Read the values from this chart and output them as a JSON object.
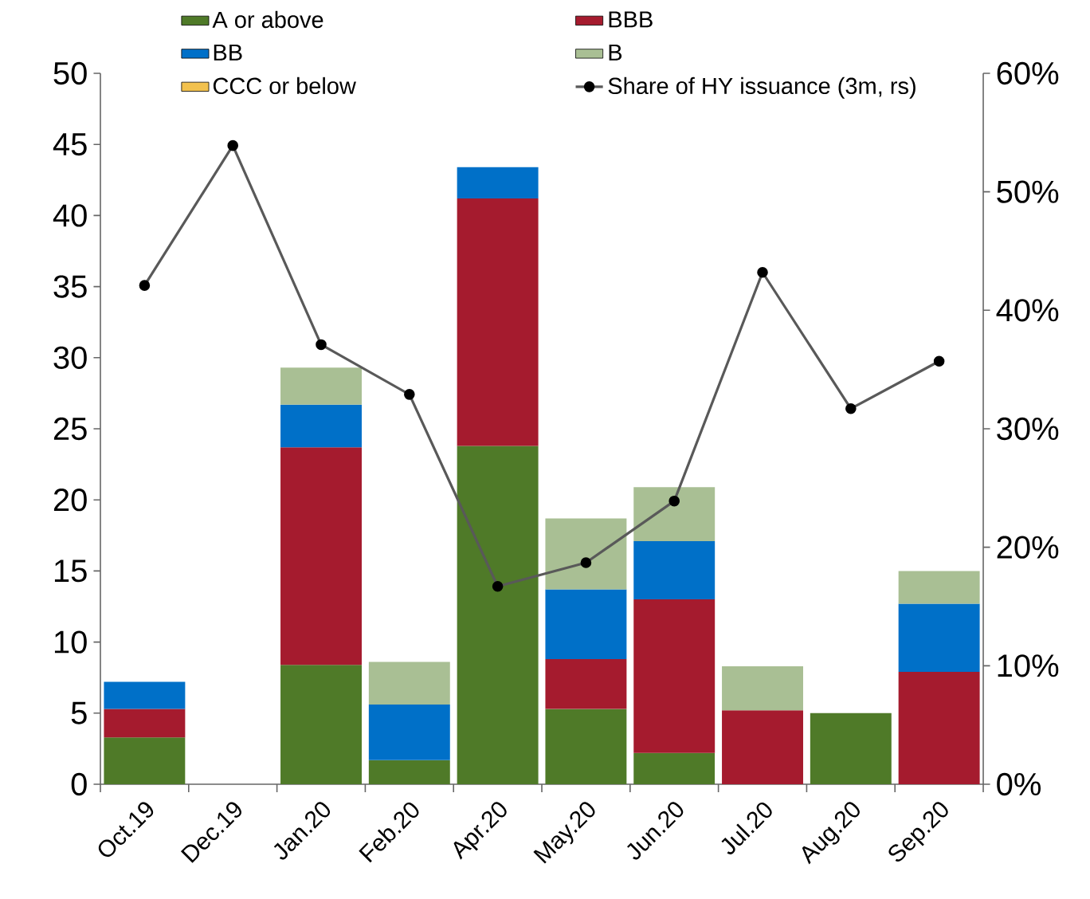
{
  "chart_data": {
    "type": "bar",
    "stacked": true,
    "legend": "top",
    "categories": [
      "Oct.19",
      "Dec.19",
      "Jan.20",
      "Feb.20",
      "Apr.20",
      "May.20",
      "Jun.20",
      "Jul.20",
      "Aug.20",
      "Sep.20"
    ],
    "series": [
      {
        "name": "A or above",
        "color": "#4f7a28",
        "values": [
          3.3,
          null,
          8.4,
          1.7,
          23.8,
          5.3,
          2.2,
          null,
          5.0,
          null
        ]
      },
      {
        "name": "BBB",
        "color": "#a51b2e",
        "values": [
          2.0,
          null,
          15.3,
          null,
          17.4,
          3.5,
          10.8,
          5.2,
          null,
          7.9
        ]
      },
      {
        "name": "BB",
        "color": "#0070c8",
        "values": [
          1.9,
          null,
          3.0,
          3.9,
          2.2,
          4.9,
          4.1,
          null,
          null,
          4.8
        ]
      },
      {
        "name": "B",
        "color": "#a9bf94",
        "values": [
          null,
          null,
          2.6,
          3.0,
          null,
          5.0,
          3.8,
          3.1,
          null,
          2.3
        ]
      },
      {
        "name": "CCC or below",
        "color": "#f2c14e",
        "values": [
          null,
          null,
          null,
          null,
          null,
          null,
          null,
          null,
          null,
          null
        ]
      },
      {
        "name": "Share of HY issuance (3m, rs)",
        "type": "line",
        "axis": "y2",
        "color": "#595959",
        "marker": "circle",
        "line_style": "solid",
        "values": [
          42.1,
          53.9,
          37.1,
          32.9,
          16.7,
          18.7,
          23.9,
          43.2,
          31.7,
          35.7
        ]
      }
    ],
    "ylim": [
      0,
      50
    ],
    "yticks": [
      0,
      5,
      10,
      15,
      20,
      25,
      30,
      35,
      40,
      45,
      50
    ],
    "y2lim": [
      0,
      60
    ],
    "y2ticks": [
      {
        "value": 0,
        "label": "0%"
      },
      {
        "value": 10,
        "label": "10%"
      },
      {
        "value": 20,
        "label": "20%"
      },
      {
        "value": 30,
        "label": "30%"
      },
      {
        "value": 40,
        "label": "40%"
      },
      {
        "value": 50,
        "label": "50%"
      },
      {
        "value": 60,
        "label": "60%"
      }
    ]
  }
}
